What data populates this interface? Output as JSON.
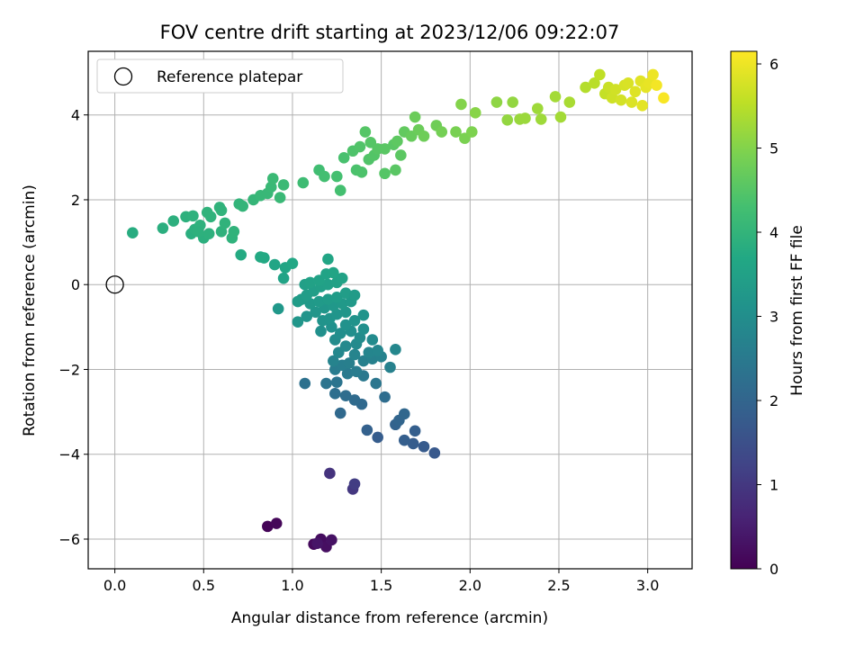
{
  "chart_data": {
    "type": "scatter",
    "title": "FOV centre drift starting at 2023/12/06 09:22:07",
    "xlabel": "Angular distance from reference (arcmin)",
    "ylabel": "Rotation from reference (arcmin)",
    "xlim": [
      -0.15,
      3.25
    ],
    "ylim": [
      -6.7,
      5.5
    ],
    "xticks": [
      0.0,
      0.5,
      1.0,
      1.5,
      2.0,
      2.5,
      3.0
    ],
    "xtick_labels": [
      "0.0",
      "0.5",
      "1.0",
      "1.5",
      "2.0",
      "2.5",
      "3.0"
    ],
    "yticks": [
      -6,
      -4,
      -2,
      0,
      2,
      4
    ],
    "ytick_labels": [
      "−6",
      "−4",
      "−2",
      "0",
      "2",
      "4"
    ],
    "grid": true,
    "legend": {
      "placement": "top-left",
      "entries": [
        "Reference platepar"
      ]
    },
    "reference_point": {
      "x": 0,
      "y": 0
    },
    "colorbar": {
      "label": "Hours from first FF file",
      "colormap": "viridis",
      "range": [
        0,
        6.15
      ],
      "ticks": [
        0,
        1,
        2,
        3,
        4,
        5,
        6
      ],
      "tick_labels": [
        "0",
        "1",
        "2",
        "3",
        "4",
        "5",
        "6"
      ]
    },
    "points": [
      [
        0.86,
        -5.7,
        0.05
      ],
      [
        0.91,
        -5.63,
        0.1
      ],
      [
        1.12,
        -6.12,
        0.15
      ],
      [
        1.16,
        -6.0,
        0.2
      ],
      [
        1.19,
        -6.18,
        0.25
      ],
      [
        1.22,
        -6.02,
        0.3
      ],
      [
        1.14,
        -6.1,
        0.35
      ],
      [
        1.21,
        -4.45,
        0.9
      ],
      [
        1.34,
        -4.82,
        1.0
      ],
      [
        1.35,
        -4.7,
        1.1
      ],
      [
        1.8,
        -3.97,
        1.7
      ],
      [
        1.74,
        -3.82,
        1.75
      ],
      [
        1.68,
        -3.75,
        1.8
      ],
      [
        1.63,
        -3.67,
        1.85
      ],
      [
        1.48,
        -3.6,
        1.8
      ],
      [
        1.42,
        -3.43,
        1.9
      ],
      [
        1.69,
        -3.45,
        1.85
      ],
      [
        1.58,
        -3.3,
        1.95
      ],
      [
        1.6,
        -3.2,
        2.0
      ],
      [
        1.63,
        -3.05,
        2.05
      ],
      [
        1.27,
        -3.03,
        2.1
      ],
      [
        1.39,
        -2.82,
        2.1
      ],
      [
        1.35,
        -2.72,
        2.15
      ],
      [
        1.3,
        -2.62,
        2.2
      ],
      [
        1.24,
        -2.57,
        2.25
      ],
      [
        1.52,
        -2.65,
        2.2
      ],
      [
        1.07,
        -2.33,
        2.3
      ],
      [
        1.19,
        -2.33,
        2.35
      ],
      [
        1.25,
        -2.3,
        2.35
      ],
      [
        1.47,
        -2.33,
        2.4
      ],
      [
        1.4,
        -2.15,
        2.45
      ],
      [
        1.31,
        -2.1,
        2.5
      ],
      [
        1.36,
        -2.05,
        2.55
      ],
      [
        1.24,
        -2.0,
        2.55
      ],
      [
        1.28,
        -1.9,
        2.6
      ],
      [
        1.32,
        -1.85,
        2.62
      ],
      [
        1.4,
        -1.8,
        2.65
      ],
      [
        1.45,
        -1.75,
        2.68
      ],
      [
        1.5,
        -1.7,
        2.7
      ],
      [
        1.55,
        -1.95,
        2.68
      ],
      [
        1.23,
        -1.8,
        2.72
      ],
      [
        1.35,
        -1.65,
        2.75
      ],
      [
        1.43,
        -1.6,
        2.78
      ],
      [
        1.48,
        -1.55,
        2.8
      ],
      [
        1.58,
        -1.53,
        2.82
      ],
      [
        1.26,
        -1.6,
        2.85
      ],
      [
        1.3,
        -1.45,
        2.88
      ],
      [
        1.36,
        -1.4,
        2.9
      ],
      [
        1.45,
        -1.3,
        2.92
      ],
      [
        1.38,
        -1.25,
        2.95
      ],
      [
        1.24,
        -1.3,
        2.95
      ],
      [
        1.27,
        -1.15,
        3.0
      ],
      [
        1.33,
        -1.1,
        3.02
      ],
      [
        1.4,
        -1.05,
        3.05
      ],
      [
        1.16,
        -1.1,
        3.05
      ],
      [
        1.22,
        -1.0,
        3.08
      ],
      [
        1.3,
        -0.95,
        3.1
      ],
      [
        1.35,
        -0.85,
        3.12
      ],
      [
        1.4,
        -0.72,
        3.15
      ],
      [
        1.17,
        -0.85,
        3.12
      ],
      [
        1.21,
        -0.8,
        3.15
      ],
      [
        1.25,
        -0.7,
        3.18
      ],
      [
        1.3,
        -0.65,
        3.2
      ],
      [
        1.08,
        -0.75,
        3.18
      ],
      [
        1.13,
        -0.65,
        3.2
      ],
      [
        1.18,
        -0.55,
        3.22
      ],
      [
        1.23,
        -0.5,
        3.25
      ],
      [
        1.28,
        -0.45,
        3.28
      ],
      [
        1.33,
        -0.4,
        3.3
      ],
      [
        1.03,
        -0.88,
        3.2
      ],
      [
        0.92,
        -0.57,
        3.25
      ],
      [
        1.1,
        -0.45,
        3.3
      ],
      [
        1.15,
        -0.4,
        3.32
      ],
      [
        1.2,
        -0.35,
        3.35
      ],
      [
        1.25,
        -0.3,
        3.38
      ],
      [
        1.3,
        -0.2,
        3.4
      ],
      [
        1.35,
        -0.25,
        3.35
      ],
      [
        1.05,
        -0.35,
        3.35
      ],
      [
        1.08,
        -0.25,
        3.4
      ],
      [
        1.12,
        -0.15,
        3.42
      ],
      [
        1.16,
        -0.05,
        3.45
      ],
      [
        1.2,
        0.0,
        3.48
      ],
      [
        1.25,
        0.05,
        3.5
      ],
      [
        1.28,
        0.15,
        3.52
      ],
      [
        1.03,
        -0.4,
        3.38
      ],
      [
        1.07,
        0.0,
        3.45
      ],
      [
        1.1,
        0.05,
        3.5
      ],
      [
        1.15,
        0.1,
        3.52
      ],
      [
        1.19,
        0.25,
        3.55
      ],
      [
        1.23,
        0.28,
        3.58
      ],
      [
        1.2,
        0.6,
        3.6
      ],
      [
        0.95,
        0.15,
        3.55
      ],
      [
        0.9,
        0.47,
        3.6
      ],
      [
        0.96,
        0.4,
        3.62
      ],
      [
        1.0,
        0.5,
        3.65
      ],
      [
        0.84,
        0.63,
        3.7
      ],
      [
        0.82,
        0.65,
        3.72
      ],
      [
        0.71,
        0.7,
        3.75
      ],
      [
        0.1,
        1.22,
        3.8
      ],
      [
        0.27,
        1.33,
        3.85
      ],
      [
        0.33,
        1.5,
        3.88
      ],
      [
        0.4,
        1.6,
        3.9
      ],
      [
        0.43,
        1.2,
        3.85
      ],
      [
        0.45,
        1.3,
        3.88
      ],
      [
        0.5,
        1.1,
        3.87
      ],
      [
        0.53,
        1.2,
        3.9
      ],
      [
        0.48,
        1.4,
        3.92
      ],
      [
        0.54,
        1.6,
        3.95
      ],
      [
        0.52,
        1.7,
        3.97
      ],
      [
        0.6,
        1.25,
        3.93
      ],
      [
        0.62,
        1.45,
        3.96
      ],
      [
        0.6,
        1.75,
        3.98
      ],
      [
        0.66,
        1.1,
        3.95
      ],
      [
        0.67,
        1.25,
        3.97
      ],
      [
        0.7,
        1.9,
        4.0
      ],
      [
        0.72,
        1.85,
        4.02
      ],
      [
        0.78,
        2.0,
        4.05
      ],
      [
        0.82,
        2.1,
        4.08
      ],
      [
        0.86,
        2.15,
        4.1
      ],
      [
        0.88,
        2.3,
        4.12
      ],
      [
        0.93,
        2.05,
        4.13
      ],
      [
        0.95,
        2.35,
        4.15
      ],
      [
        0.89,
        2.5,
        4.15
      ],
      [
        0.44,
        1.62,
        3.92
      ],
      [
        0.47,
        1.25,
        3.9
      ],
      [
        0.59,
        1.82,
        3.97
      ],
      [
        1.06,
        2.4,
        4.2
      ],
      [
        1.15,
        2.7,
        4.25
      ],
      [
        1.18,
        2.55,
        4.28
      ],
      [
        1.25,
        2.55,
        4.3
      ],
      [
        1.27,
        2.22,
        4.3
      ],
      [
        1.29,
        2.99,
        4.35
      ],
      [
        1.36,
        2.7,
        4.38
      ],
      [
        1.39,
        2.65,
        4.4
      ],
      [
        1.34,
        3.15,
        4.42
      ],
      [
        1.38,
        3.25,
        4.45
      ],
      [
        1.43,
        2.95,
        4.45
      ],
      [
        1.46,
        3.05,
        4.48
      ],
      [
        1.41,
        3.6,
        4.5
      ],
      [
        1.44,
        3.35,
        4.5
      ],
      [
        1.48,
        3.2,
        4.52
      ],
      [
        1.52,
        2.62,
        4.5
      ],
      [
        1.52,
        3.2,
        4.55
      ],
      [
        1.57,
        3.3,
        4.55
      ],
      [
        1.58,
        2.7,
        4.55
      ],
      [
        1.61,
        3.05,
        4.58
      ],
      [
        1.59,
        3.38,
        4.6
      ],
      [
        1.63,
        3.6,
        4.65
      ],
      [
        1.67,
        3.5,
        4.7
      ],
      [
        1.69,
        3.95,
        4.75
      ],
      [
        1.71,
        3.65,
        4.75
      ],
      [
        1.74,
        3.5,
        4.78
      ],
      [
        1.81,
        3.75,
        4.8
      ],
      [
        1.84,
        3.6,
        4.85
      ],
      [
        1.92,
        3.6,
        4.9
      ],
      [
        1.97,
        3.45,
        4.92
      ],
      [
        2.01,
        3.6,
        4.95
      ],
      [
        1.95,
        4.25,
        5.0
      ],
      [
        2.03,
        4.05,
        5.05
      ],
      [
        2.15,
        4.3,
        5.1
      ],
      [
        2.21,
        3.88,
        5.15
      ],
      [
        2.24,
        4.3,
        5.15
      ],
      [
        2.28,
        3.9,
        5.2
      ],
      [
        2.31,
        3.92,
        5.22
      ],
      [
        2.38,
        4.15,
        5.25
      ],
      [
        2.4,
        3.9,
        5.25
      ],
      [
        2.48,
        4.43,
        5.3
      ],
      [
        2.51,
        3.95,
        5.3
      ],
      [
        2.56,
        4.3,
        5.35
      ],
      [
        2.65,
        4.65,
        5.45
      ],
      [
        2.7,
        4.75,
        5.5
      ],
      [
        2.73,
        4.95,
        5.55
      ],
      [
        2.76,
        4.5,
        5.6
      ],
      [
        2.78,
        4.65,
        5.65
      ],
      [
        2.8,
        4.4,
        5.7
      ],
      [
        2.82,
        4.6,
        5.72
      ],
      [
        2.85,
        4.35,
        5.75
      ],
      [
        2.87,
        4.7,
        5.78
      ],
      [
        2.89,
        4.75,
        5.8
      ],
      [
        2.91,
        4.3,
        5.82
      ],
      [
        2.93,
        4.55,
        5.85
      ],
      [
        2.96,
        4.8,
        5.88
      ],
      [
        2.97,
        4.22,
        5.9
      ],
      [
        2.99,
        4.65,
        5.92
      ],
      [
        3.01,
        4.75,
        5.95
      ],
      [
        3.03,
        4.95,
        6.0
      ],
      [
        3.05,
        4.7,
        6.05
      ],
      [
        3.09,
        4.4,
        6.1
      ]
    ]
  }
}
